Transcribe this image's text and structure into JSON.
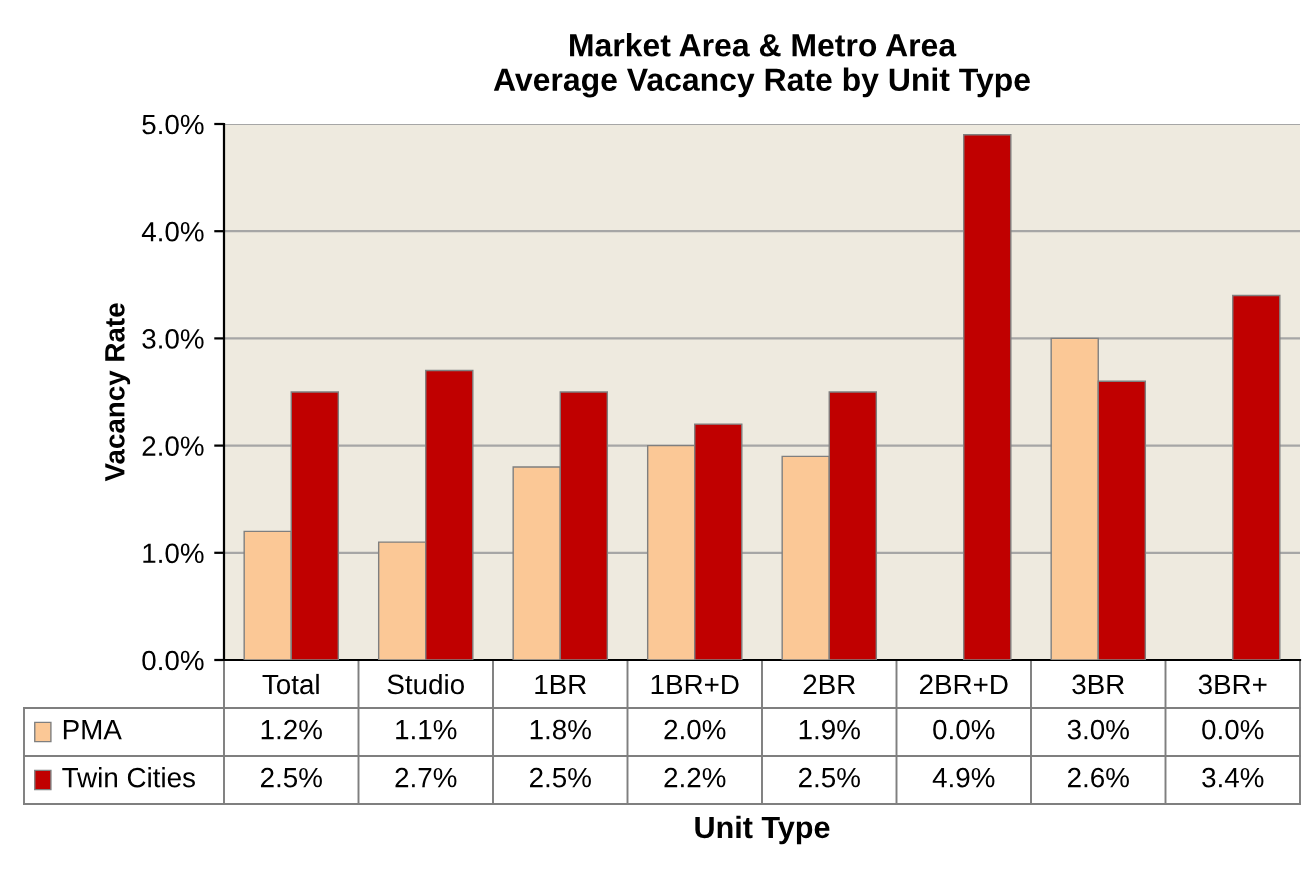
{
  "chart_data": {
    "type": "bar",
    "title": "Market Area & Metro Area\nAverage Vacancy Rate by Unit Type",
    "xlabel": "Unit Type",
    "ylabel": "Vacancy Rate",
    "categories": [
      "Total",
      "Studio",
      "1BR",
      "1BR+D",
      "2BR",
      "2BR+D",
      "3BR",
      "3BR+"
    ],
    "series": [
      {
        "name": "PMA",
        "color": "#fbc896",
        "values": [
          1.2,
          1.1,
          1.8,
          2.0,
          1.9,
          0.0,
          3.0,
          0.0
        ],
        "value_labels": [
          "1.2%",
          "1.1%",
          "1.8%",
          "2.0%",
          "1.9%",
          "0.0%",
          "3.0%",
          "0.0%"
        ]
      },
      {
        "name": "Twin Cities",
        "color": "#c00000",
        "values": [
          2.5,
          2.7,
          2.5,
          2.2,
          2.5,
          4.9,
          2.6,
          3.4
        ],
        "value_labels": [
          "2.5%",
          "2.7%",
          "2.5%",
          "2.2%",
          "2.5%",
          "4.9%",
          "2.6%",
          "3.4%"
        ]
      }
    ],
    "ylim": [
      0,
      5
    ],
    "yticks": [
      {
        "value": 0,
        "label": "0.0%"
      },
      {
        "value": 1,
        "label": "1.0%"
      },
      {
        "value": 2,
        "label": "2.0%"
      },
      {
        "value": 3,
        "label": "3.0%"
      },
      {
        "value": 4,
        "label": "4.0%"
      },
      {
        "value": 5,
        "label": "5.0%"
      }
    ],
    "grid": "y",
    "legend": "bottom"
  }
}
